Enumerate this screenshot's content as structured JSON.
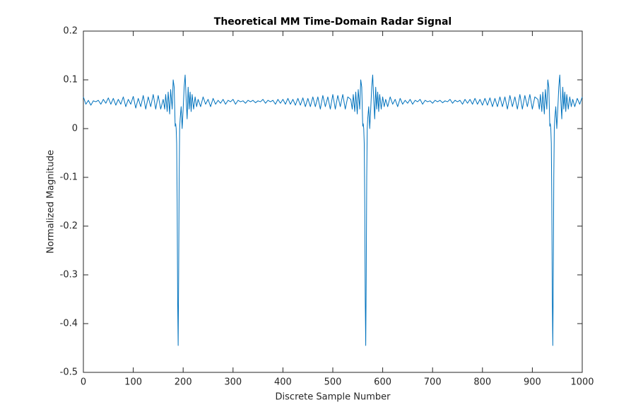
{
  "chart_data": {
    "type": "line",
    "title": "Theoretical MM Time-Domain Radar Signal",
    "x_label": "Discrete Sample Number",
    "y_label": "Normalized Magnitude",
    "xlim": [
      0,
      1000
    ],
    "ylim": [
      -0.5,
      0.2
    ],
    "xticks": [
      0,
      100,
      200,
      300,
      400,
      500,
      600,
      700,
      800,
      900,
      1000
    ],
    "yticks": [
      -0.5,
      -0.4,
      -0.3,
      -0.2,
      -0.1,
      0,
      0.1,
      0.2
    ],
    "grid": false,
    "x": [
      0,
      5,
      10,
      15,
      20,
      25,
      30,
      35,
      40,
      45,
      50,
      55,
      60,
      65,
      70,
      75,
      80,
      85,
      90,
      95,
      100,
      105,
      110,
      115,
      120,
      125,
      130,
      135,
      140,
      145,
      150,
      155,
      160,
      163,
      165,
      168,
      170,
      173,
      175,
      178,
      180,
      182,
      184,
      185,
      186,
      187,
      188,
      189,
      190,
      191,
      192,
      193,
      194,
      196,
      198,
      200,
      202,
      204,
      206,
      208,
      210,
      212,
      214,
      216,
      218,
      221,
      224,
      227,
      230,
      235,
      240,
      245,
      250,
      255,
      260,
      265,
      270,
      275,
      280,
      285,
      290,
      295,
      300,
      305,
      310,
      315,
      320,
      325,
      330,
      335,
      340,
      345,
      350,
      355,
      360,
      365,
      370,
      375,
      380,
      385,
      390,
      395,
      400,
      405,
      410,
      415,
      420,
      425,
      430,
      435,
      440,
      445,
      450,
      455,
      460,
      465,
      470,
      475,
      480,
      485,
      490,
      495,
      500,
      505,
      510,
      515,
      520,
      525,
      530,
      536,
      539,
      541,
      544,
      546,
      549,
      551,
      554,
      556,
      558,
      560,
      561,
      562,
      563,
      564,
      565,
      566,
      567,
      568,
      569,
      570,
      572,
      574,
      576,
      578,
      580,
      582,
      584,
      586,
      588,
      590,
      592,
      594,
      597,
      600,
      603,
      606,
      610,
      615,
      620,
      625,
      630,
      635,
      640,
      645,
      650,
      655,
      660,
      665,
      670,
      675,
      680,
      685,
      690,
      695,
      700,
      705,
      710,
      715,
      720,
      725,
      730,
      735,
      740,
      745,
      750,
      755,
      760,
      765,
      770,
      775,
      780,
      785,
      790,
      795,
      800,
      805,
      810,
      815,
      820,
      825,
      830,
      835,
      840,
      845,
      850,
      855,
      860,
      865,
      870,
      875,
      880,
      885,
      890,
      895,
      900,
      905,
      911,
      914,
      916,
      919,
      921,
      924,
      926,
      929,
      931,
      933,
      935,
      936,
      937,
      938,
      939,
      940,
      941,
      942,
      943,
      944,
      945,
      947,
      949,
      951,
      953,
      955,
      957,
      959,
      961,
      963,
      965,
      967,
      969,
      972,
      975,
      978,
      981,
      985,
      990,
      995,
      1000
    ],
    "series": [
      {
        "color": "#0072bd",
        "values": [
          0.065,
          0.05,
          0.058,
          0.048,
          0.057,
          0.055,
          0.058,
          0.05,
          0.06,
          0.052,
          0.063,
          0.05,
          0.062,
          0.048,
          0.06,
          0.05,
          0.065,
          0.045,
          0.06,
          0.05,
          0.066,
          0.042,
          0.062,
          0.045,
          0.068,
          0.04,
          0.065,
          0.045,
          0.07,
          0.04,
          0.068,
          0.04,
          0.06,
          0.04,
          0.07,
          0.035,
          0.075,
          0.03,
          0.08,
          0.04,
          0.1,
          0.085,
          0.005,
          0.01,
          0.0,
          -0.03,
          -0.15,
          -0.35,
          -0.445,
          -0.3,
          -0.1,
          0.0,
          0.02,
          0.045,
          0.0,
          0.04,
          0.085,
          0.11,
          0.06,
          0.02,
          0.085,
          0.04,
          0.075,
          0.035,
          0.07,
          0.04,
          0.065,
          0.045,
          0.06,
          0.045,
          0.065,
          0.05,
          0.06,
          0.045,
          0.062,
          0.05,
          0.058,
          0.052,
          0.06,
          0.05,
          0.058,
          0.055,
          0.06,
          0.05,
          0.058,
          0.055,
          0.057,
          0.052,
          0.058,
          0.055,
          0.058,
          0.053,
          0.057,
          0.055,
          0.06,
          0.052,
          0.058,
          0.055,
          0.058,
          0.05,
          0.06,
          0.052,
          0.06,
          0.05,
          0.062,
          0.05,
          0.06,
          0.048,
          0.062,
          0.048,
          0.063,
          0.045,
          0.062,
          0.045,
          0.065,
          0.045,
          0.065,
          0.04,
          0.068,
          0.045,
          0.065,
          0.04,
          0.07,
          0.04,
          0.068,
          0.045,
          0.07,
          0.04,
          0.065,
          0.06,
          0.04,
          0.07,
          0.035,
          0.075,
          0.03,
          0.08,
          0.04,
          0.1,
          0.085,
          0.005,
          0.01,
          0.0,
          -0.03,
          -0.15,
          -0.35,
          -0.445,
          -0.3,
          -0.1,
          0.0,
          0.02,
          0.045,
          0.0,
          0.04,
          0.085,
          0.11,
          0.06,
          0.02,
          0.085,
          0.04,
          0.075,
          0.035,
          0.07,
          0.04,
          0.065,
          0.045,
          0.06,
          0.045,
          0.065,
          0.05,
          0.06,
          0.045,
          0.062,
          0.05,
          0.058,
          0.052,
          0.06,
          0.05,
          0.058,
          0.055,
          0.06,
          0.05,
          0.058,
          0.055,
          0.057,
          0.052,
          0.058,
          0.055,
          0.058,
          0.053,
          0.057,
          0.055,
          0.06,
          0.052,
          0.058,
          0.055,
          0.058,
          0.05,
          0.06,
          0.052,
          0.06,
          0.05,
          0.062,
          0.05,
          0.06,
          0.048,
          0.062,
          0.048,
          0.063,
          0.045,
          0.062,
          0.045,
          0.065,
          0.045,
          0.065,
          0.04,
          0.068,
          0.045,
          0.065,
          0.04,
          0.07,
          0.04,
          0.068,
          0.045,
          0.07,
          0.04,
          0.065,
          0.06,
          0.04,
          0.07,
          0.035,
          0.075,
          0.03,
          0.08,
          0.04,
          0.1,
          0.085,
          0.005,
          0.01,
          0.0,
          -0.03,
          -0.15,
          -0.35,
          -0.445,
          -0.3,
          -0.1,
          0.0,
          0.02,
          0.045,
          0.0,
          0.04,
          0.085,
          0.11,
          0.06,
          0.02,
          0.085,
          0.04,
          0.075,
          0.035,
          0.07,
          0.04,
          0.065,
          0.045,
          0.06,
          0.045,
          0.062,
          0.05,
          0.065
        ]
      }
    ]
  }
}
